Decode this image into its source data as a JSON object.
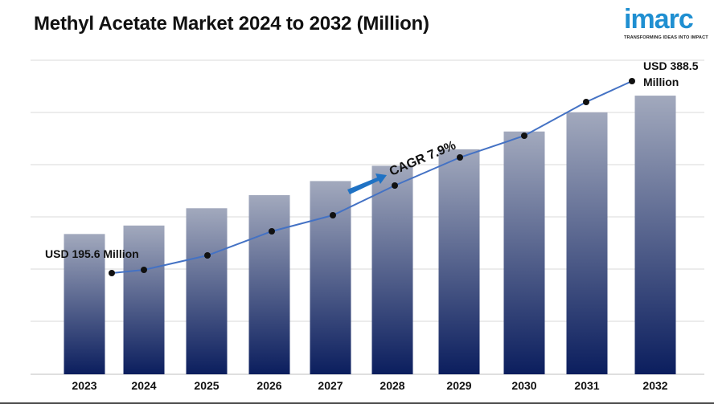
{
  "header": {
    "title": "Methyl Acetate Market 2024 to 2032 (Million)"
  },
  "brand": {
    "logo_text": "imarc",
    "tagline": "TRANSFORMING IDEAS INTO IMPACT",
    "logo_color": "#1f8fd1"
  },
  "colors": {
    "bar_top": "#a2a9bd",
    "bar_bottom": "#0b1e5e",
    "line": "#4472c4",
    "marker": "#111111",
    "grid": "#d9d9d9",
    "arrow": "#1f72c4"
  },
  "chart_data": {
    "type": "bar",
    "title": "Methyl Acetate Market 2024 to 2032 (Million)",
    "categories": [
      "2023",
      "2024",
      "2025",
      "2026",
      "2027",
      "2028",
      "2029",
      "2030",
      "2031",
      "2032"
    ],
    "series": [
      {
        "values": [
          195.6,
          207.4,
          231.5,
          249.8,
          269.4,
          290.7,
          313.7,
          338.5,
          365.2,
          388.5
        ]
      }
    ],
    "grid": true,
    "annotations": {
      "start_label": "USD 195.6 Million",
      "end_label_line1": "USD 388.5",
      "end_label_line2": "Million",
      "cagr_label": "CAGR 7.9%"
    }
  }
}
